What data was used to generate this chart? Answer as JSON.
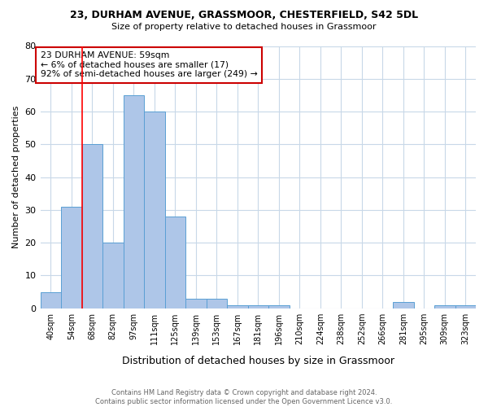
{
  "title_line1": "23, DURHAM AVENUE, GRASSMOOR, CHESTERFIELD, S42 5DL",
  "title_line2": "Size of property relative to detached houses in Grassmoor",
  "xlabel": "Distribution of detached houses by size in Grassmoor",
  "ylabel": "Number of detached properties",
  "footnote": "Contains HM Land Registry data © Crown copyright and database right 2024.\nContains public sector information licensed under the Open Government Licence v3.0.",
  "categories": [
    "40sqm",
    "54sqm",
    "68sqm",
    "82sqm",
    "97sqm",
    "111sqm",
    "125sqm",
    "139sqm",
    "153sqm",
    "167sqm",
    "181sqm",
    "196sqm",
    "210sqm",
    "224sqm",
    "238sqm",
    "252sqm",
    "266sqm",
    "281sqm",
    "295sqm",
    "309sqm",
    "323sqm"
  ],
  "values": [
    5,
    31,
    50,
    20,
    65,
    60,
    28,
    3,
    3,
    1,
    1,
    1,
    0,
    0,
    0,
    0,
    0,
    2,
    0,
    1,
    1
  ],
  "bar_color": "#aec6e8",
  "bar_edge_color": "#5a9fd4",
  "red_line_x": 1.5,
  "annotation_text": "23 DURHAM AVENUE: 59sqm\n← 6% of detached houses are smaller (17)\n92% of semi-detached houses are larger (249) →",
  "annotation_box_color": "white",
  "annotation_box_edge": "#cc0000",
  "ylim": [
    0,
    80
  ],
  "yticks": [
    0,
    10,
    20,
    30,
    40,
    50,
    60,
    70,
    80
  ],
  "background_color": "white",
  "grid_color": "#c8d8e8"
}
